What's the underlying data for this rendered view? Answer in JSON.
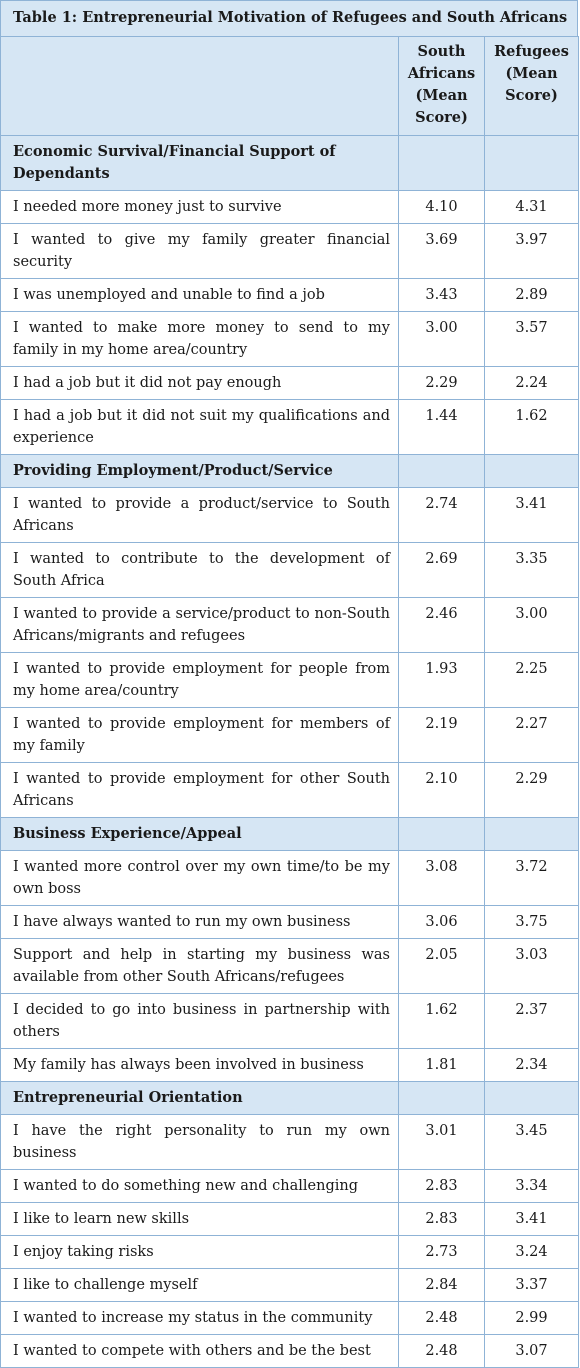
{
  "table": {
    "caption": "Table 1: Entrepreneurial Motivation of Refugees and South Africans",
    "col_header_1": "South Africans (Mean Score)",
    "col_header_2": "Refugees (Mean Score)",
    "sections": [
      {
        "title": "Economic Survival/Financial Support of Dependants",
        "rows": [
          {
            "label": "I needed more money just to survive",
            "sa": "4.10",
            "ref": "4.31"
          },
          {
            "label": "I wanted to give my family greater financial security",
            "sa": "3.69",
            "ref": "3.97"
          },
          {
            "label": "I was unemployed and unable to find a job",
            "sa": "3.43",
            "ref": "2.89"
          },
          {
            "label": "I wanted to make more money to send to my family in my home area/country",
            "sa": "3.00",
            "ref": "3.57"
          },
          {
            "label": "I had a job but it did not pay enough",
            "sa": "2.29",
            "ref": "2.24"
          },
          {
            "label": "I had a job but it did not suit my qualifications and experience",
            "sa": "1.44",
            "ref": "1.62"
          }
        ]
      },
      {
        "title": "Providing Employment/Product/Service",
        "rows": [
          {
            "label": "I wanted to provide a product/service to South Africans",
            "sa": "2.74",
            "ref": "3.41"
          },
          {
            "label": "I wanted to contribute to the development of South Africa",
            "sa": "2.69",
            "ref": "3.35"
          },
          {
            "label": "I wanted to provide a service/product to non-South Africans/migrants and refugees",
            "sa": "2.46",
            "ref": "3.00"
          },
          {
            "label": "I wanted to provide employment for people from my home area/country",
            "sa": "1.93",
            "ref": "2.25"
          },
          {
            "label": "I wanted to provide employment for members of my family",
            "sa": "2.19",
            "ref": "2.27"
          },
          {
            "label": "I wanted to provide employment for other South Africans",
            "sa": "2.10",
            "ref": "2.29"
          }
        ]
      },
      {
        "title": "Business Experience/Appeal",
        "rows": [
          {
            "label": "I wanted more control over my own time/to be my own boss",
            "sa": "3.08",
            "ref": "3.72"
          },
          {
            "label": "I have always wanted to run my own business",
            "sa": "3.06",
            "ref": "3.75"
          },
          {
            "label": "Support and help in starting my business was available from other South Africans/refugees",
            "sa": "2.05",
            "ref": "3.03"
          },
          {
            "label": "I decided to go into business in partnership with others",
            "sa": "1.62",
            "ref": "2.37"
          },
          {
            "label": "My family has always been involved in business",
            "sa": "1.81",
            "ref": "2.34"
          }
        ]
      },
      {
        "title": "Entrepreneurial Orientation",
        "rows": [
          {
            "label": "I have the right personality to run my own business",
            "sa": "3.01",
            "ref": "3.45"
          },
          {
            "label": "I wanted to do something new and challenging",
            "sa": "2.83",
            "ref": "3.34"
          },
          {
            "label": "I like to learn new skills",
            "sa": "2.83",
            "ref": "3.41"
          },
          {
            "label": "I enjoy taking risks",
            "sa": "2.73",
            "ref": "3.24"
          },
          {
            "label": "I like to challenge myself",
            "sa": "2.84",
            "ref": "3.37"
          },
          {
            "label": "I wanted to increase my status in the community",
            "sa": "2.48",
            "ref": "2.99"
          },
          {
            "label": "I wanted to compete with others and be the best",
            "sa": "2.48",
            "ref": "3.07"
          }
        ]
      }
    ]
  }
}
